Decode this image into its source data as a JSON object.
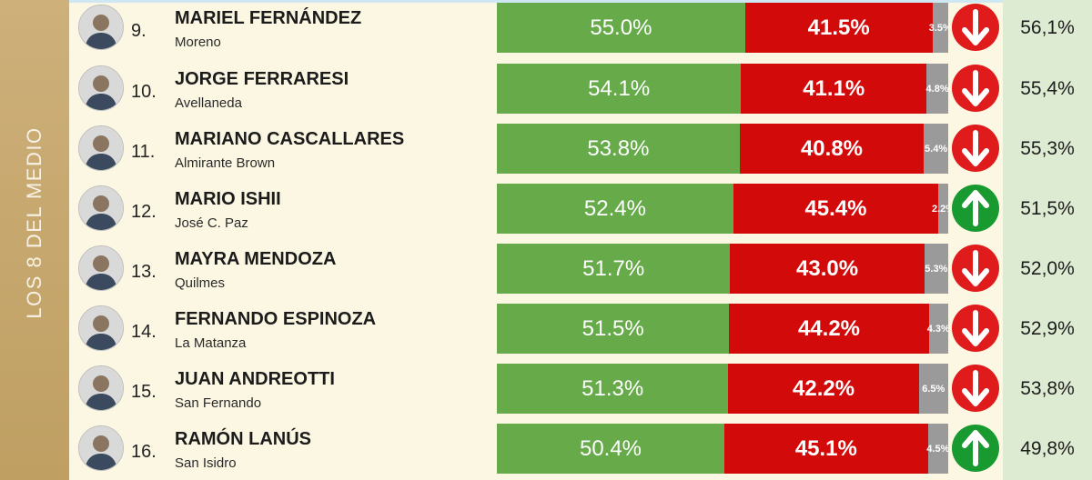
{
  "group_label": "LOS 8 DEL MEDIO",
  "colors": {
    "green": "#66aa4a",
    "red": "#d20a0a",
    "grey": "#9a9a9a",
    "up": "#189a31",
    "down": "#e01b1b"
  },
  "chart_data": {
    "type": "bar",
    "orientation": "horizontal",
    "stacked": true,
    "categories": [
      "MARIEL FERNÁNDEZ",
      "JORGE FERRARESI",
      "MARIANO CASCALLARES",
      "MARIO ISHII",
      "MAYRA MENDOZA",
      "FERNANDO ESPINOZA",
      "JUAN ANDREOTTI",
      "RAMÓN LANÚS"
    ],
    "series": [
      {
        "color": "#66aa4a",
        "values": [
          55.0,
          54.1,
          53.8,
          52.4,
          51.7,
          51.5,
          51.3,
          50.4
        ],
        "labels": [
          "55.0%",
          "54.1%",
          "53.8%",
          "52.4%",
          "51.7%",
          "51.5%",
          "51.3%",
          "50.4%"
        ]
      },
      {
        "color": "#d20a0a",
        "values": [
          41.5,
          41.1,
          40.8,
          45.4,
          43.0,
          44.2,
          42.2,
          45.1
        ],
        "labels": [
          "41.5%",
          "41.1%",
          "40.8%",
          "45.4%",
          "43.0%",
          "44.2%",
          "42.2%",
          "45.1%"
        ]
      },
      {
        "color": "#9a9a9a",
        "values": [
          3.5,
          4.8,
          5.4,
          2.2,
          5.3,
          4.3,
          6.5,
          4.5
        ],
        "labels": [
          "3.5%",
          "4.8%",
          "5.4%",
          "2.2%",
          "5.3%",
          "4.3%",
          "6.5%",
          "4.5%"
        ]
      }
    ],
    "xlim": [
      0,
      100
    ]
  },
  "rows": [
    {
      "rank": "9.",
      "name": "MARIEL FERNÁNDEZ",
      "place": "Moreno",
      "trend": "down",
      "trend_icon": "arrow-down-icon",
      "previous": "56,1%"
    },
    {
      "rank": "10.",
      "name": "JORGE FERRARESI",
      "place": "Avellaneda",
      "trend": "down",
      "trend_icon": "arrow-down-icon",
      "previous": "55,4%"
    },
    {
      "rank": "11.",
      "name": "MARIANO CASCALLARES",
      "place": "Almirante Brown",
      "trend": "down",
      "trend_icon": "arrow-down-icon",
      "previous": "55,3%"
    },
    {
      "rank": "12.",
      "name": "MARIO ISHII",
      "place": "José C. Paz",
      "trend": "up",
      "trend_icon": "arrow-up-icon",
      "previous": "51,5%"
    },
    {
      "rank": "13.",
      "name": "MAYRA MENDOZA",
      "place": "Quilmes",
      "trend": "down",
      "trend_icon": "arrow-down-icon",
      "previous": "52,0%"
    },
    {
      "rank": "14.",
      "name": "FERNANDO ESPINOZA",
      "place": "La Matanza",
      "trend": "down",
      "trend_icon": "arrow-down-icon",
      "previous": "52,9%"
    },
    {
      "rank": "15.",
      "name": "JUAN ANDREOTTI",
      "place": "San Fernando",
      "trend": "down",
      "trend_icon": "arrow-down-icon",
      "previous": "53,8%"
    },
    {
      "rank": "16.",
      "name": "RAMÓN LANÚS",
      "place": "San Isidro",
      "trend": "up",
      "trend_icon": "arrow-up-icon",
      "previous": "49,8%"
    }
  ]
}
